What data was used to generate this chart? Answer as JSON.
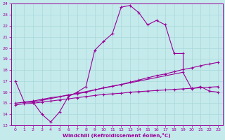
{
  "xlabel": "Windchill (Refroidissement éolien,°C)",
  "xlim": [
    -0.5,
    23.5
  ],
  "ylim": [
    13,
    24
  ],
  "yticks": [
    13,
    14,
    15,
    16,
    17,
    18,
    19,
    20,
    21,
    22,
    23,
    24
  ],
  "xticks": [
    0,
    1,
    2,
    3,
    4,
    5,
    6,
    7,
    8,
    9,
    10,
    11,
    12,
    13,
    14,
    15,
    16,
    17,
    18,
    19,
    20,
    21,
    22,
    23
  ],
  "background_color": "#c5eaec",
  "grid_color": "#a8d8da",
  "line_color": "#990099",
  "line1_x": [
    0,
    1,
    2,
    3,
    4,
    5,
    6,
    7,
    8,
    9,
    10,
    11,
    12,
    13,
    14,
    15,
    16,
    17,
    18,
    19
  ],
  "line1_y": [
    17.0,
    15.1,
    15.1,
    14.0,
    13.3,
    14.2,
    15.6,
    16.0,
    16.5,
    19.8,
    20.6,
    21.3,
    23.7,
    23.85,
    23.2,
    22.1,
    22.5,
    22.1,
    19.5,
    19.5
  ],
  "line2_x": [
    1,
    2,
    19,
    20,
    21,
    22,
    23
  ],
  "line2_y": [
    15.1,
    15.1,
    17.8,
    16.3,
    16.5,
    16.1,
    16.0
  ],
  "line3_x": [
    0,
    1,
    2,
    3,
    4,
    5,
    6,
    7,
    8,
    9,
    10,
    11,
    12,
    13,
    14,
    15,
    16,
    17,
    18,
    19,
    20,
    21,
    22,
    23
  ],
  "line3_y": [
    15.0,
    15.1,
    15.2,
    15.35,
    15.5,
    15.6,
    15.75,
    15.85,
    16.0,
    16.2,
    16.4,
    16.55,
    16.7,
    16.9,
    17.1,
    17.3,
    17.5,
    17.65,
    17.85,
    18.05,
    18.2,
    18.4,
    18.55,
    18.7
  ],
  "line4_x": [
    0,
    1,
    2,
    3,
    4,
    5,
    6,
    7,
    8,
    9,
    10,
    11,
    12,
    13,
    14,
    15,
    16,
    17,
    18,
    19,
    20,
    21,
    22,
    23
  ],
  "line4_y": [
    14.85,
    14.95,
    15.0,
    15.1,
    15.2,
    15.3,
    15.4,
    15.5,
    15.6,
    15.7,
    15.8,
    15.85,
    15.9,
    16.0,
    16.05,
    16.1,
    16.15,
    16.2,
    16.25,
    16.3,
    16.35,
    16.4,
    16.45,
    16.5
  ]
}
